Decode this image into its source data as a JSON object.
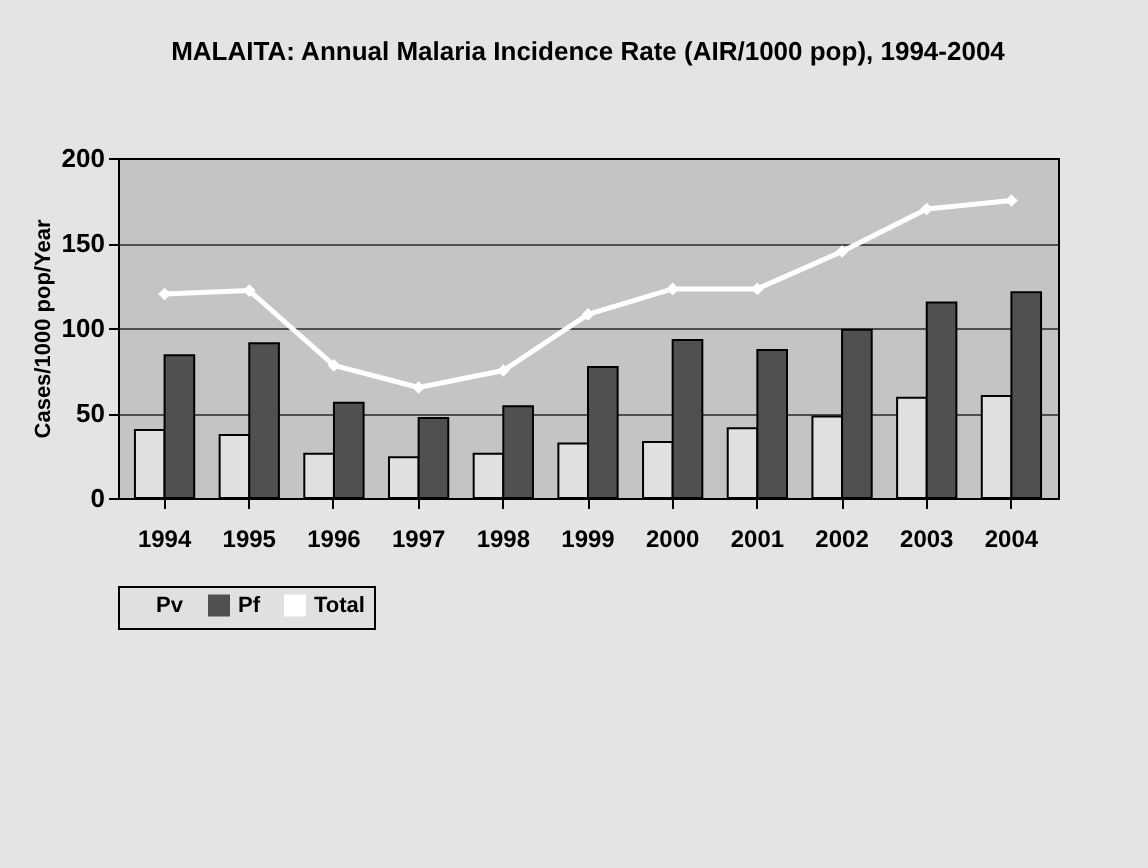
{
  "chart_data": {
    "type": "bar",
    "title": "MALAITA: Annual Malaria Incidence Rate (AIR/1000 pop), 1994-2004",
    "ylabel": "Cases/1000 pop/Year",
    "categories": [
      "1994",
      "1995",
      "1996",
      "1997",
      "1998",
      "1999",
      "2000",
      "2001",
      "2002",
      "2003",
      "2004"
    ],
    "series": [
      {
        "name": "Pv",
        "color": "#e0e0e0",
        "values": [
          40,
          37,
          26,
          24,
          26,
          32,
          33,
          41,
          48,
          59,
          60
        ]
      },
      {
        "name": "Pf",
        "color": "#505050",
        "values": [
          84,
          91,
          56,
          47,
          54,
          77,
          93,
          87,
          99,
          115,
          121
        ]
      },
      {
        "name": "Total",
        "type": "line",
        "color": "#ffffff",
        "values": [
          120,
          122,
          78,
          65,
          75,
          108,
          123,
          123,
          145,
          170,
          175
        ]
      }
    ],
    "ylim": [
      0,
      200
    ],
    "yticks": [
      0,
      50,
      100,
      150,
      200
    ],
    "grid": "y",
    "legend": "bottom",
    "marker": "diamond"
  }
}
